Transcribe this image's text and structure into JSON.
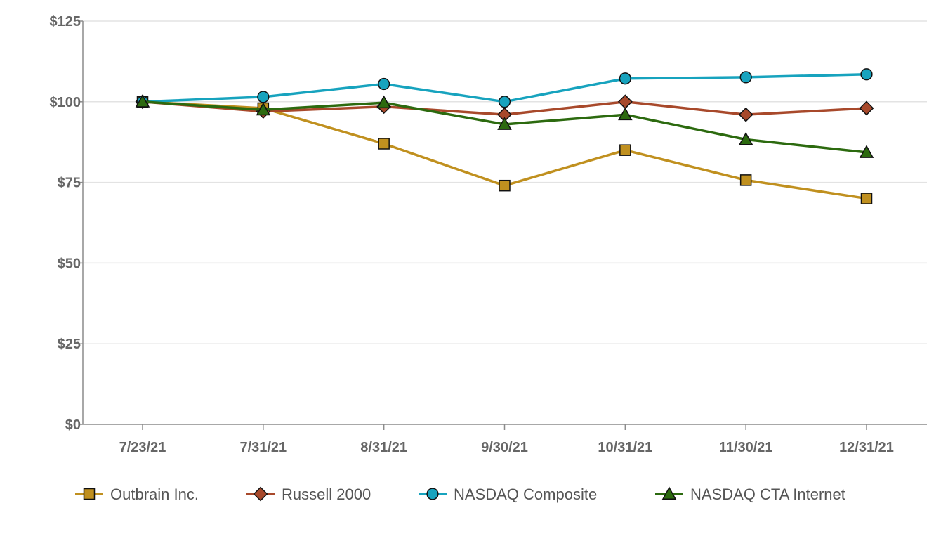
{
  "chart_data": {
    "type": "line",
    "categories": [
      "7/23/21",
      "7/31/21",
      "8/31/21",
      "9/30/21",
      "10/31/21",
      "11/30/21",
      "12/31/21"
    ],
    "y_ticks": [
      "$0",
      "$25",
      "$50",
      "$75",
      "$100",
      "$125"
    ],
    "ylim": [
      0,
      125
    ],
    "grid": "horizontal",
    "legend_position": "bottom",
    "series": [
      {
        "name": "Outbrain Inc.",
        "values": [
          100,
          98,
          87,
          74,
          85,
          75.7,
          70
        ],
        "color": "#C0901F",
        "marker": "square"
      },
      {
        "name": "Russell 2000",
        "values": [
          100,
          97,
          98.5,
          96,
          100,
          96,
          98
        ],
        "color": "#A8492B",
        "marker": "diamond"
      },
      {
        "name": "NASDAQ Composite",
        "values": [
          100,
          101.5,
          105.5,
          100,
          107.2,
          107.6,
          108.5
        ],
        "color": "#17A3BE",
        "marker": "circle"
      },
      {
        "name": "NASDAQ CTA Internet",
        "values": [
          100,
          97.5,
          99.7,
          93,
          96,
          88.3,
          84.3
        ],
        "color": "#2C6A0F",
        "marker": "triangle"
      }
    ]
  }
}
